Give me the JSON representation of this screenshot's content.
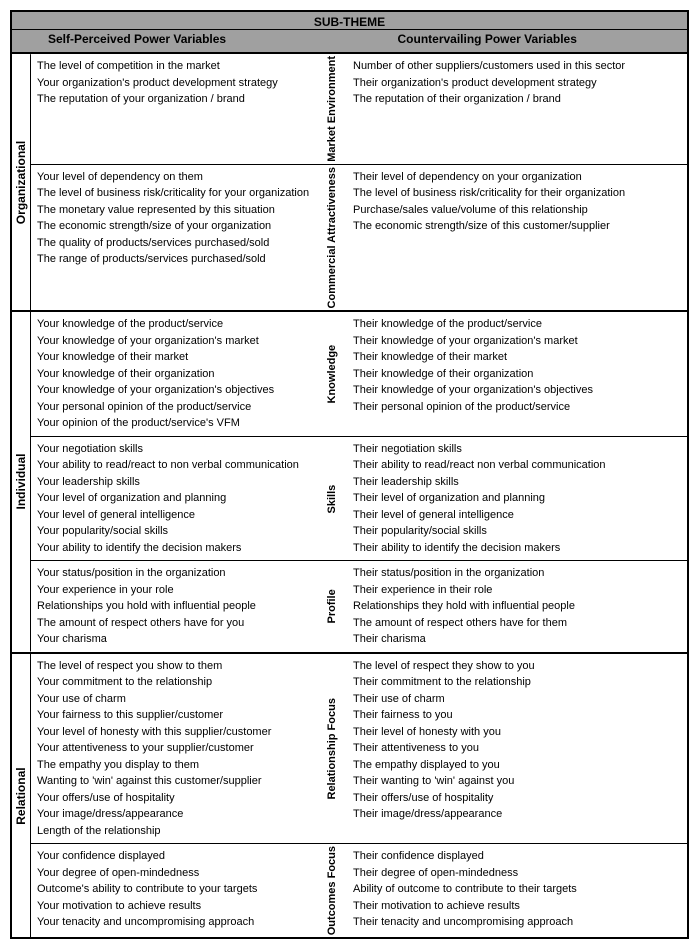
{
  "header": {
    "title": "SUB-THEME",
    "leftCol": "Self-Perceived Power Variables",
    "rightCol": "Countervailing Power Variables"
  },
  "sections": [
    {
      "label": "Organizational",
      "blocks": [
        {
          "sub": "Market\nEnvironment",
          "left": [
            "The level of competition in the market",
            "Your organization's product development strategy",
            "The reputation of your organization / brand"
          ],
          "right": [
            "Number of other suppliers/customers used in this sector",
            "Their organization's product development strategy",
            "The reputation of their organization / brand"
          ]
        },
        {
          "sub": "Commercial\nAttractiveness",
          "left": [
            "Your level of dependency on them",
            "The level of business risk/criticality for your organization",
            "The monetary value represented by this situation",
            "The economic strength/size of your organization",
            "The quality of products/services purchased/sold",
            "The range of products/services purchased/sold"
          ],
          "right": [
            "Their level of dependency on your organization",
            "The level of business risk/criticality for their organization",
            "Purchase/sales value/volume of this relationship",
            "The economic strength/size of this customer/supplier"
          ]
        }
      ]
    },
    {
      "label": "Individual",
      "blocks": [
        {
          "sub": "Knowledge",
          "left": [
            "Your knowledge of the product/service",
            "Your knowledge of your organization's market",
            "Your knowledge of their market",
            "Your knowledge of their organization",
            "Your knowledge of your organization's objectives",
            "Your personal opinion of the product/service",
            "Your opinion of the product/service's VFM"
          ],
          "right": [
            "Their knowledge of the product/service",
            "Their knowledge of your organization's market",
            "Their knowledge of their market",
            "Their knowledge of their organization",
            "Their knowledge of your organization's objectives",
            "Their personal opinion of the product/service"
          ]
        },
        {
          "sub": "Skills",
          "left": [
            "Your negotiation skills",
            "Your ability to read/react to non verbal communication",
            "Your leadership skills",
            "Your level of organization and planning",
            "Your level of general intelligence",
            "Your popularity/social skills",
            "Your ability to identify the decision makers"
          ],
          "right": [
            "Their negotiation skills",
            "Their ability to read/react non verbal communication",
            "Their leadership skills",
            "Their level of organization and planning",
            "Their level of general intelligence",
            "Their popularity/social skills",
            "Their ability to identify the decision makers"
          ]
        },
        {
          "sub": "Profile",
          "left": [
            "Your status/position in the organization",
            "Your experience in your role",
            "Relationships you hold with influential people",
            "The amount of respect others have for you",
            "Your charisma"
          ],
          "right": [
            "Their status/position in the organization",
            "Their experience in their role",
            "Relationships they hold with influential people",
            "The amount of respect others have for them",
            "Their charisma"
          ]
        }
      ]
    },
    {
      "label": "Relational",
      "blocks": [
        {
          "sub": "Relationship Focus",
          "left": [
            "The level of respect you show to them",
            "Your commitment to the relationship",
            "Your use of charm",
            "Your fairness to this supplier/customer",
            "Your level of honesty with this supplier/customer",
            "Your attentiveness to your supplier/customer",
            "The empathy you display to them",
            "Wanting to 'win' against this customer/supplier",
            "Your offers/use of hospitality",
            "Your image/dress/appearance",
            "Length of the relationship"
          ],
          "right": [
            "The level of respect they show to you",
            "Their commitment to the relationship",
            "Their use of charm",
            "Their fairness to you",
            "Their level of honesty with you",
            "Their attentiveness to you",
            "The empathy displayed to you",
            "Their wanting to 'win' against you",
            "Their offers/use of hospitality",
            "Their image/dress/appearance"
          ]
        },
        {
          "sub": "Outcomes\nFocus",
          "left": [
            "Your confidence displayed",
            "Your degree of open-mindedness",
            "Outcome's ability to contribute to your targets",
            "Your motivation to achieve results",
            "Your tenacity and uncompromising approach"
          ],
          "right": [
            "Their confidence displayed",
            "Their degree of open-mindedness",
            "Ability of outcome to contribute to their targets",
            "Their motivation to achieve results",
            "Their tenacity and uncompromising approach"
          ]
        }
      ]
    }
  ]
}
